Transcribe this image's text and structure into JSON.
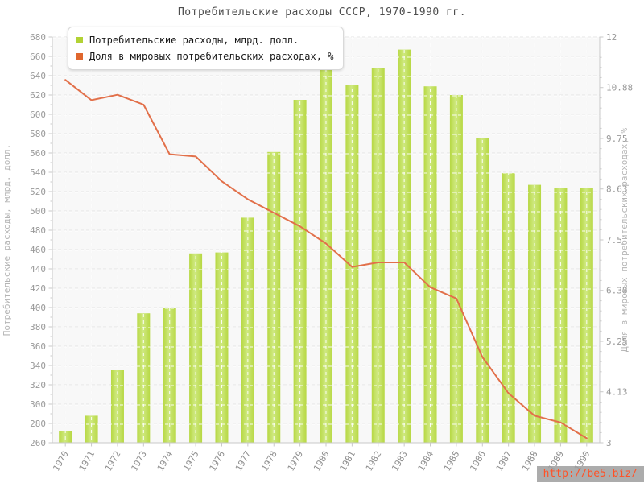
{
  "title": "Потребительские расходы СССР, 1970-1990 гг.",
  "legend": {
    "items": [
      {
        "label": "Потребительские расходы, млрд. долл.",
        "color": "#b2d234"
      },
      {
        "label": "Доля в мировых потребительских расходах, %",
        "color": "#e0672e"
      }
    ]
  },
  "watermark": "http://be5.biz/",
  "colors": {
    "bar": "#b7d843",
    "bar_light": "#cfe981",
    "line": "#e2704a",
    "plot_background": "#f8f8f8",
    "axis_line": "#c9c9c9",
    "grid": "#e4e4e4",
    "tick_label": "#999999",
    "x_label": "#8f8f8f",
    "axis_title": "#b5b5b5",
    "title_text": "#4d4d4d"
  },
  "chart_data": {
    "type": "bar",
    "title": "Потребительские расходы СССР, 1970-1990 гг.",
    "categories": [
      "1970",
      "1971",
      "1972",
      "1973",
      "1974",
      "1975",
      "1976",
      "1977",
      "1978",
      "1979",
      "1980",
      "1981",
      "1982",
      "1983",
      "1984",
      "1985",
      "1986",
      "1987",
      "1988",
      "1989",
      "1990"
    ],
    "series": [
      {
        "name": "Потребительские расходы, млрд. долл.",
        "type": "bar",
        "axis": "left",
        "color": "#b7d843",
        "color_light": "#cfe981",
        "values": [
          272,
          288,
          335,
          394,
          400,
          456,
          457,
          493,
          561,
          615,
          651,
          630,
          648,
          667,
          629,
          620,
          575,
          539,
          527,
          524,
          524
        ]
      },
      {
        "name": "Доля в мировых потребительских расходах, %",
        "type": "line",
        "axis": "right",
        "color": "#e2704a",
        "values": [
          11.05,
          10.6,
          10.72,
          10.5,
          9.4,
          9.35,
          8.8,
          8.4,
          8.1,
          7.8,
          7.42,
          6.9,
          7.0,
          7.0,
          6.45,
          6.2,
          4.9,
          4.1,
          3.6,
          3.45,
          3.1
        ]
      }
    ],
    "left_axis": {
      "title": "Потребительские расходы, млрд. долл.",
      "min": 260,
      "max": 680,
      "tick_step": 20,
      "tick_labels": [
        "680",
        "660",
        "640",
        "620",
        "600",
        "580",
        "560",
        "540",
        "520",
        "500",
        "480",
        "460",
        "440",
        "420",
        "400",
        "380",
        "360",
        "340",
        "320",
        "300",
        "280",
        "260"
      ]
    },
    "right_axis": {
      "title": "Доля в мировых потребительских расходах, %",
      "min": 3,
      "max": 12,
      "tick_labels": [
        "12",
        "10.88",
        "9.75",
        "8.63",
        "7.5",
        "6.38",
        "5.25",
        "4.13",
        "3"
      ]
    },
    "grid": "dashed",
    "legend_position": "top-left",
    "x_label_rotation": -60
  }
}
